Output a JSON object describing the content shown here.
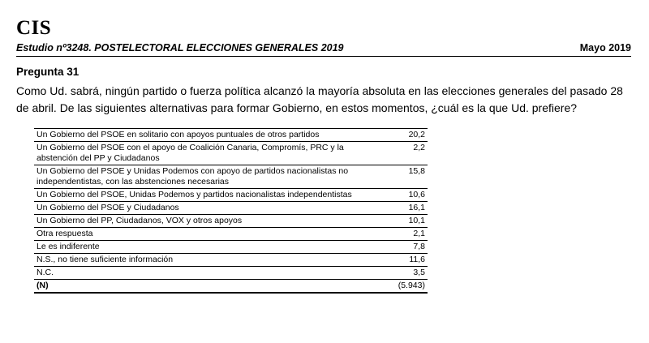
{
  "header": {
    "logo": "CIS",
    "study": "Estudio nº3248. POSTELECTORAL ELECCIONES GENERALES 2019",
    "date": "Mayo 2019"
  },
  "question": {
    "title": "Pregunta 31",
    "text": "Como Ud. sabrá, ningún partido o fuerza política alcanzó la mayoría absoluta en las elecciones generales del pasado 28 de abril. De las siguientes alternativas para formar Gobierno, en estos momentos, ¿cuál es la que Ud. prefiere?"
  },
  "table": {
    "rows": [
      {
        "label": "Un Gobierno del PSOE en solitario con apoyos puntuales de otros partidos",
        "value": "20,2"
      },
      {
        "label": "Un Gobierno del PSOE con el apoyo de Coalición Canaria, Compromís, PRC y la abstención del PP y Ciudadanos",
        "value": "2,2"
      },
      {
        "label": "Un Gobierno del PSOE y Unidas Podemos con apoyo de partidos nacionalistas no independentistas, con las abstenciones necesarias",
        "value": "15,8"
      },
      {
        "label": "Un Gobierno del PSOE, Unidas Podemos y partidos nacionalistas independentistas",
        "value": "10,6"
      },
      {
        "label": "Un Gobierno del PSOE y Ciudadanos",
        "value": "16,1"
      },
      {
        "label": "Un Gobierno del PP, Ciudadanos, VOX y otros apoyos",
        "value": "10,1"
      },
      {
        "label": "Otra respuesta",
        "value": "2,1"
      },
      {
        "label": "Le es indiferente",
        "value": "7,8"
      },
      {
        "label": "N.S., no tiene suficiente información",
        "value": "11,6"
      },
      {
        "label": "N.C.",
        "value": "3,5"
      }
    ],
    "total": {
      "label": "(N)",
      "value": "(5.943)"
    }
  }
}
